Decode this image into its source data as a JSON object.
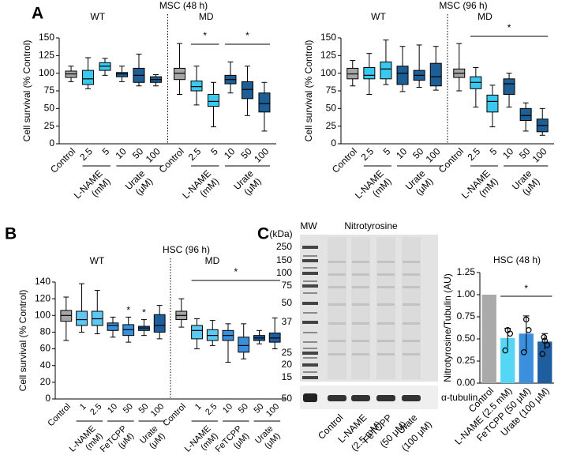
{
  "panel_labels": [
    "A",
    "B",
    "C"
  ],
  "chart_data": [
    {
      "type": "box",
      "title": "MSC (48 h)",
      "ylabel": "Cell survival (% Control)",
      "ylim": [
        0,
        150
      ],
      "yticks": [
        0,
        25,
        50,
        75,
        100,
        125,
        150
      ],
      "groups": [
        {
          "name": "WT",
          "control": {
            "label": "Control",
            "color": "#a6a6a6",
            "box": {
              "min": 88,
              "q1": 94,
              "median": 99,
              "q3": 103,
              "max": 110
            }
          },
          "treatments": [
            {
              "name": "L-NAME",
              "unit": "(mM)",
              "color": "#39c8ee",
              "doses": [
                "2.5",
                "5"
              ],
              "boxes": [
                {
                  "min": 78,
                  "q1": 84,
                  "median": 92,
                  "q3": 104,
                  "max": 122
                },
                {
                  "min": 97,
                  "q1": 104,
                  "median": 110,
                  "q3": 115,
                  "max": 121
                }
              ]
            },
            {
              "name": "Urate",
              "unit": "(μM)",
              "color": "#1d5e94",
              "doses": [
                "10",
                "50",
                "100"
              ],
              "boxes": [
                {
                  "min": 88,
                  "q1": 95,
                  "median": 99,
                  "q3": 101,
                  "max": 110
                },
                {
                  "min": 82,
                  "q1": 87,
                  "median": 97,
                  "q3": 107,
                  "max": 127
                },
                {
                  "min": 82,
                  "q1": 87,
                  "median": 91,
                  "q3": 95,
                  "max": 98
                }
              ]
            }
          ]
        },
        {
          "name": "MD",
          "control": {
            "label": "Control",
            "color": "#a6a6a6",
            "box": {
              "min": 70,
              "q1": 91,
              "median": 100,
              "q3": 107,
              "max": 142
            }
          },
          "treatments": [
            {
              "name": "L-NAME",
              "unit": "(mM)",
              "color": "#39c8ee",
              "doses": [
                "2.5",
                "5"
              ],
              "sig": "*",
              "boxes": [
                {
                  "min": 55,
                  "q1": 75,
                  "median": 81,
                  "q3": 89,
                  "max": 110
                },
                {
                  "min": 24,
                  "q1": 53,
                  "median": 60,
                  "q3": 70,
                  "max": 87
                }
              ]
            },
            {
              "name": "Urate",
              "unit": "(μM)",
              "color": "#1d5e94",
              "doses": [
                "10",
                "50",
                "100"
              ],
              "sig": "*",
              "boxes": [
                {
                  "min": 72,
                  "q1": 85,
                  "median": 91,
                  "q3": 97,
                  "max": 116
                },
                {
                  "min": 40,
                  "q1": 64,
                  "median": 77,
                  "q3": 88,
                  "max": 110
                },
                {
                  "min": 18,
                  "q1": 45,
                  "median": 57,
                  "q3": 72,
                  "max": 87
                }
              ]
            }
          ]
        }
      ]
    },
    {
      "type": "box",
      "title": "MSC (96 h)",
      "ylabel": "Cell survival (% Control)",
      "ylim": [
        0,
        150
      ],
      "yticks": [
        0,
        25,
        50,
        75,
        100,
        125,
        150
      ],
      "groups": [
        {
          "name": "WT",
          "control": {
            "label": "Control",
            "color": "#a6a6a6",
            "box": {
              "min": 82,
              "q1": 92,
              "median": 99,
              "q3": 107,
              "max": 118
            }
          },
          "treatments": [
            {
              "name": "L-NAME",
              "unit": "(mM)",
              "color": "#39c8ee",
              "doses": [
                "2.5",
                "5"
              ],
              "boxes": [
                {
                  "min": 70,
                  "q1": 92,
                  "median": 97,
                  "q3": 108,
                  "max": 128
                },
                {
                  "min": 84,
                  "q1": 92,
                  "median": 106,
                  "q3": 116,
                  "max": 147
                }
              ]
            },
            {
              "name": "Urate",
              "unit": "(μM)",
              "color": "#1d5e94",
              "doses": [
                "10",
                "50",
                "100"
              ],
              "boxes": [
                {
                  "min": 74,
                  "q1": 84,
                  "median": 100,
                  "q3": 110,
                  "max": 138
                },
                {
                  "min": 80,
                  "q1": 90,
                  "median": 97,
                  "q3": 104,
                  "max": 140
                },
                {
                  "min": 76,
                  "q1": 82,
                  "median": 95,
                  "q3": 114,
                  "max": 138
                }
              ]
            }
          ]
        },
        {
          "name": "MD",
          "sig": "*",
          "control": {
            "label": "Control",
            "color": "#a6a6a6",
            "box": {
              "min": 75,
              "q1": 94,
              "median": 100,
              "q3": 106,
              "max": 142
            }
          },
          "treatments": [
            {
              "name": "L-NAME",
              "unit": "(mM)",
              "color": "#39c8ee",
              "doses": [
                "2.5",
                "5"
              ],
              "boxes": [
                {
                  "min": 52,
                  "q1": 78,
                  "median": 87,
                  "q3": 95,
                  "max": 108
                },
                {
                  "min": 24,
                  "q1": 45,
                  "median": 60,
                  "q3": 69,
                  "max": 83
                }
              ]
            },
            {
              "name": "Urate",
              "unit": "(μM)",
              "color": "#1d5e94",
              "doses": [
                "10",
                "50",
                "100"
              ],
              "boxes": [
                {
                  "min": 52,
                  "q1": 70,
                  "median": 85,
                  "q3": 92,
                  "max": 100
                },
                {
                  "min": 18,
                  "q1": 33,
                  "median": 40,
                  "q3": 50,
                  "max": 58
                },
                {
                  "min": 12,
                  "q1": 17,
                  "median": 26,
                  "q3": 35,
                  "max": 50
                }
              ]
            }
          ]
        }
      ]
    },
    {
      "type": "box",
      "title": "HSC (96 h)",
      "ylabel": "Cell survival (% Control)",
      "ylim": [
        0,
        140
      ],
      "yticks": [
        0,
        20,
        40,
        60,
        80,
        100,
        120,
        140
      ],
      "groups": [
        {
          "name": "WT",
          "control": {
            "label": "Control",
            "color": "#a6a6a6",
            "box": {
              "min": 70,
              "q1": 93,
              "median": 100,
              "q3": 106,
              "max": 122
            }
          },
          "treatments": [
            {
              "name": "L-NAME",
              "unit": "(mM)",
              "color": "#5ec8f2",
              "doses": [
                "1",
                "2.5"
              ],
              "boxes": [
                {
                  "min": 80,
                  "q1": 88,
                  "median": 95,
                  "q3": 105,
                  "max": 138
                },
                {
                  "min": 78,
                  "q1": 88,
                  "median": 96,
                  "q3": 105,
                  "max": 130
                }
              ]
            },
            {
              "name": "FeTCPP",
              "unit": "(μM)",
              "color": "#3a8fdb",
              "doses": [
                "10",
                "50"
              ],
              "stars": [
                null,
                "*"
              ],
              "boxes": [
                {
                  "min": 74,
                  "q1": 82,
                  "median": 88,
                  "q3": 91,
                  "max": 98
                },
                {
                  "min": 68,
                  "q1": 76,
                  "median": 83,
                  "q3": 89,
                  "max": 98
                }
              ]
            },
            {
              "name": "Urate",
              "unit": "(μM)",
              "color": "#1e5d9c",
              "doses": [
                "50",
                "100"
              ],
              "stars": [
                "*",
                null
              ],
              "boxes": [
                {
                  "min": 76,
                  "q1": 82,
                  "median": 85,
                  "q3": 87,
                  "max": 95
                },
                {
                  "min": 72,
                  "q1": 80,
                  "median": 88,
                  "q3": 101,
                  "max": 112
                }
              ]
            }
          ]
        },
        {
          "name": "MD",
          "sig": "*",
          "control": {
            "label": "Control",
            "color": "#a6a6a6",
            "box": {
              "min": 86,
              "q1": 95,
              "median": 100,
              "q3": 105,
              "max": 120
            }
          },
          "treatments": [
            {
              "name": "L-NAME",
              "unit": "(mM)",
              "color": "#5ec8f2",
              "doses": [
                "1",
                "2.5"
              ],
              "boxes": [
                {
                  "min": 60,
                  "q1": 72,
                  "median": 82,
                  "q3": 88,
                  "max": 96
                },
                {
                  "min": 64,
                  "q1": 70,
                  "median": 76,
                  "q3": 83,
                  "max": 94
                }
              ]
            },
            {
              "name": "FeTCPP",
              "unit": "(μM)",
              "color": "#3a8fdb",
              "doses": [
                "10",
                "50"
              ],
              "boxes": [
                {
                  "min": 44,
                  "q1": 70,
                  "median": 76,
                  "q3": 82,
                  "max": 90
                },
                {
                  "min": 48,
                  "q1": 56,
                  "median": 64,
                  "q3": 74,
                  "max": 90
                }
              ]
            },
            {
              "name": "Urate",
              "unit": "(μM)",
              "color": "#1e5d9c",
              "doses": [
                "50",
                "100"
              ],
              "boxes": [
                {
                  "min": 66,
                  "q1": 70,
                  "median": 73,
                  "q3": 76,
                  "max": 82
                },
                {
                  "min": 60,
                  "q1": 68,
                  "median": 73,
                  "q3": 79,
                  "max": 97
                }
              ]
            }
          ]
        }
      ]
    },
    {
      "type": "bar",
      "title": "HSC (48 h)",
      "ylabel": "Nitrotyrosine/Tubulin (AU)",
      "categories": [
        "Control",
        "L-NAME (2.5 mM)",
        "FeTCPP (50 μM)",
        "Urate (100 μM)"
      ],
      "values": [
        1.0,
        0.51,
        0.56,
        0.47
      ],
      "errors": [
        null,
        0.11,
        0.2,
        0.09
      ],
      "points": [
        null,
        [
          0.37,
          0.56,
          0.6
        ],
        [
          0.35,
          0.6,
          0.72
        ],
        [
          0.33,
          0.43,
          0.48,
          0.52
        ]
      ],
      "colors": [
        "#aaaaaa",
        "#56d6f5",
        "#3a90dc",
        "#1f5e9e"
      ],
      "sig": "*",
      "ylim": [
        0,
        1.25
      ],
      "yticks": [
        {
          "value": 0,
          "label": "0.00"
        },
        {
          "value": 0.25,
          "label": "0.25"
        },
        {
          "value": 0.5,
          "label": "0.50"
        },
        {
          "value": 0.75,
          "label": "0.75"
        },
        {
          "value": 1,
          "label": "1.00"
        },
        {
          "value": 1.25,
          "label": "1.25"
        }
      ]
    }
  ],
  "blot": {
    "unit": "(kDa)",
    "ladder_label": "MW",
    "title": "Nitrotyrosine",
    "markers": [
      "250",
      "150",
      "100",
      "75",
      "50",
      "37",
      "25",
      "20",
      "15"
    ],
    "loading_marker": "50",
    "loading_control": "α-tubulin",
    "lanes": [
      [
        "Control"
      ],
      [
        "L-NAME",
        "(2.5 mM)"
      ],
      [
        "FeTCPP",
        "(50 μM)"
      ],
      [
        "Urate",
        "(100 μM)"
      ]
    ]
  }
}
